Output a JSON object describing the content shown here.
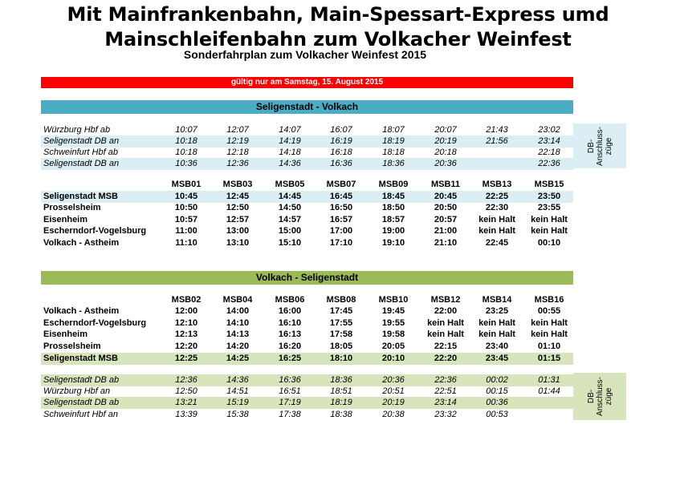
{
  "title_line1": "Mit Mainfrankenbahn, Main-Spessart-Express umd",
  "title_line2": "Mainschleifenbahn zum Volkacher Weinfest",
  "subtitle": "Sonderfahrplan zum Volkacher Weinfest 2015",
  "validity": "gültig nur am Samstag, 15. August 2015",
  "section1": {
    "title": "Seligenstadt - Volkach",
    "db_rows": [
      {
        "label": "Würzburg Hbf ab",
        "times": [
          "10:07",
          "12:07",
          "14:07",
          "16:07",
          "18:07",
          "20:07",
          "21:43",
          "23:02"
        ]
      },
      {
        "label": "Seligenstadt DB an",
        "times": [
          "10:18",
          "12:19",
          "14:19",
          "16:19",
          "18:19",
          "20:19",
          "21:56",
          "23:14"
        ]
      },
      {
        "label": "Schweinfurt Hbf ab",
        "times": [
          "10:18",
          "12:18",
          "14:18",
          "16:18",
          "18:18",
          "20:18",
          "",
          "22:18"
        ]
      },
      {
        "label": "Seligenstadt DB an",
        "times": [
          "10:36",
          "12:36",
          "14:36",
          "16:36",
          "18:36",
          "20:36",
          "",
          "22:36"
        ]
      }
    ],
    "side_line1": "DB-",
    "side_line2": "Anschluss-",
    "side_line3": "züge",
    "header": [
      "MSB01",
      "MSB03",
      "MSB05",
      "MSB07",
      "MSB09",
      "MSB11",
      "MSB13",
      "MSB15"
    ],
    "msb_rows": [
      {
        "label": "Seligenstadt MSB",
        "times": [
          "10:45",
          "12:45",
          "14:45",
          "16:45",
          "18:45",
          "20:45",
          "22:25",
          "23:50"
        ]
      },
      {
        "label": "Prosselsheim",
        "times": [
          "10:50",
          "12:50",
          "14:50",
          "16:50",
          "18:50",
          "20:50",
          "22:30",
          "23:55"
        ]
      },
      {
        "label": "Eisenheim",
        "times": [
          "10:57",
          "12:57",
          "14:57",
          "16:57",
          "18:57",
          "20:57",
          "kein Halt",
          "kein Halt"
        ]
      },
      {
        "label": "Escherndorf-Vogelsburg",
        "times": [
          "11:00",
          "13:00",
          "15:00",
          "17:00",
          "19:00",
          "21:00",
          "kein Halt",
          "kein Halt"
        ]
      },
      {
        "label": "Volkach - Astheim",
        "times": [
          "11:10",
          "13:10",
          "15:10",
          "17:10",
          "19:10",
          "21:10",
          "22:45",
          "00:10"
        ]
      }
    ]
  },
  "section2": {
    "title": "Volkach - Seligenstadt",
    "header": [
      "MSB02",
      "MSB04",
      "MSB06",
      "MSB08",
      "MSB10",
      "MSB12",
      "MSB14",
      "MSB16"
    ],
    "msb_rows": [
      {
        "label": "Volkach - Astheim",
        "times": [
          "12:00",
          "14:00",
          "16:00",
          "17:45",
          "19:45",
          "22:00",
          "23:25",
          "00:55"
        ]
      },
      {
        "label": "Escherndorf-Vogelsburg",
        "times": [
          "12:10",
          "14:10",
          "16:10",
          "17:55",
          "19:55",
          "kein Halt",
          "kein Halt",
          "kein Halt"
        ]
      },
      {
        "label": "Eisenheim",
        "times": [
          "12:13",
          "14:13",
          "16:13",
          "17:58",
          "19:58",
          "kein Halt",
          "kein Halt",
          "kein Halt"
        ]
      },
      {
        "label": "Prosselsheim",
        "times": [
          "12:20",
          "14:20",
          "16:20",
          "18:05",
          "20:05",
          "22:15",
          "23:40",
          "01:10"
        ]
      },
      {
        "label": "Seligenstadt MSB",
        "times": [
          "12:25",
          "14:25",
          "16:25",
          "18:10",
          "20:10",
          "22:20",
          "23:45",
          "01:15"
        ]
      }
    ],
    "db_rows": [
      {
        "label": "Seligenstadt DB ab",
        "times": [
          "12:36",
          "14:36",
          "16:36",
          "18:36",
          "20:36",
          "22:36",
          "00:02",
          "01:31"
        ]
      },
      {
        "label": "Würzburg Hbf an",
        "times": [
          "12:50",
          "14:51",
          "16:51",
          "18:51",
          "20:51",
          "22:51",
          "00:15",
          "01:44"
        ]
      },
      {
        "label": "Seligenstadt DB ab",
        "times": [
          "13:21",
          "15:19",
          "17:19",
          "18:19",
          "20:19",
          "23:14",
          "00:36",
          ""
        ]
      },
      {
        "label": "Schweinfurt Hbf an",
        "times": [
          "13:39",
          "15:38",
          "17:38",
          "18:38",
          "20:38",
          "23:32",
          "00:53",
          ""
        ]
      }
    ],
    "side_line1": "DB-",
    "side_line2": "Anschluss-",
    "side_line3": "züge"
  },
  "colors": {
    "red": "#ff0000",
    "blue": "#4bacc6",
    "blue_light": "#daeef3",
    "green": "#9bbb59",
    "green_light": "#d7e4bc"
  }
}
